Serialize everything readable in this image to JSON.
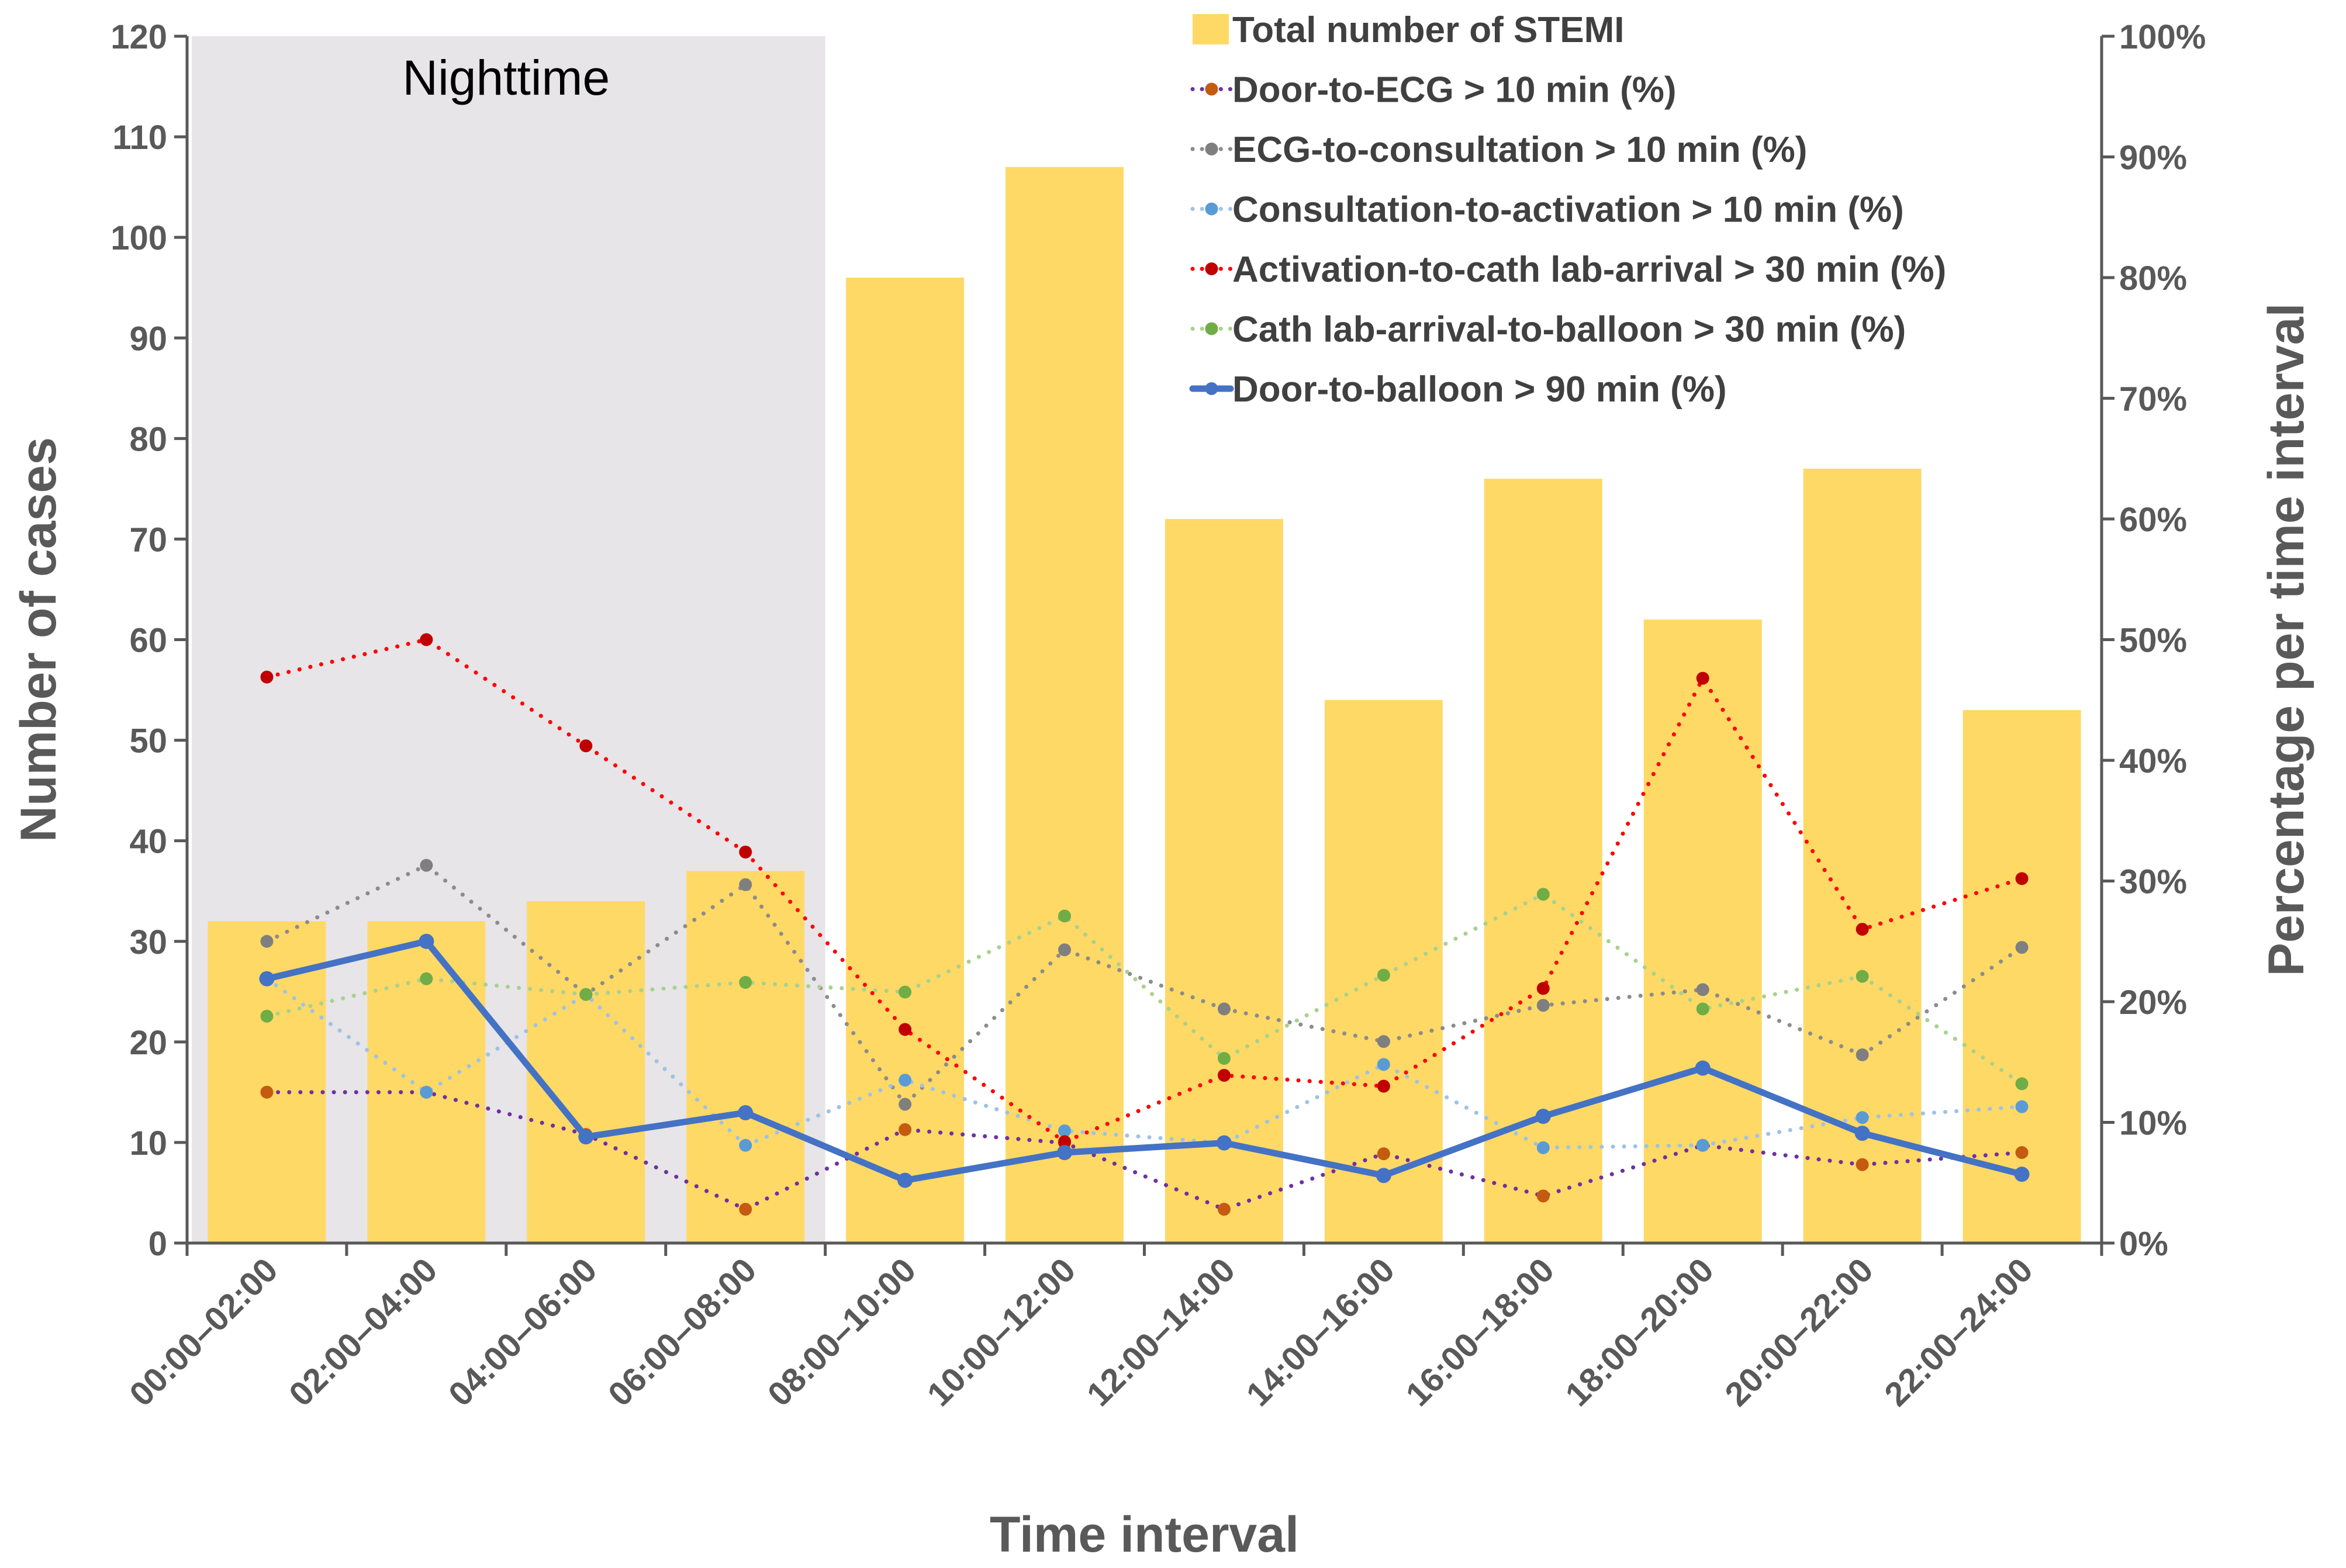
{
  "chart_data": {
    "type": "bar",
    "xlabel": "Time interval",
    "ylabel": "Number of cases",
    "y2label": "Percentage  per time interval",
    "ylim": [
      0,
      120
    ],
    "y2lim": [
      0,
      100
    ],
    "yticks": [
      "0",
      "10",
      "20",
      "30",
      "40",
      "50",
      "60",
      "70",
      "80",
      "90",
      "100",
      "110",
      "120"
    ],
    "y2ticks": [
      "0%",
      "10%",
      "20%",
      "30%",
      "40%",
      "50%",
      "60%",
      "70%",
      "80%",
      "90%",
      "100%"
    ],
    "categories": [
      "00:00–02:00",
      "02:00–04:00",
      "04:00–06:00",
      "06:00–08:00",
      "08:00–10:00",
      "10:00–12:00",
      "12:00–14:00",
      "14:00–16:00",
      "16:00–18:00",
      "18:00–20:00",
      "20:00–22:00",
      "22:00–24:00"
    ],
    "annotation": "Nighttime",
    "shaded_region": {
      "from_category": "00:00–02:00",
      "to_category": "06:00–08:00",
      "color": "#e7e5e8"
    },
    "bars": {
      "name": "Total number of STEMI",
      "axis": "left",
      "color": "#ffd966",
      "values": [
        32,
        32,
        34,
        37,
        96,
        107,
        72,
        54,
        76,
        62,
        77,
        53
      ]
    },
    "series": [
      {
        "name": "Door-to-ECG > 10 min (%)",
        "axis": "right",
        "style": "dotted",
        "color": "#7030a0",
        "marker": "#c55a11",
        "values": [
          12.5,
          12.5,
          9.0,
          2.8,
          9.4,
          8.3,
          2.8,
          7.4,
          3.9,
          8.1,
          6.5,
          7.5
        ]
      },
      {
        "name": "ECG-to-consultation > 10 min (%)",
        "axis": "right",
        "style": "dotted",
        "color": "#8c8c8c",
        "marker": "#7f7f7f",
        "values": [
          25.0,
          31.3,
          20.6,
          29.7,
          11.5,
          24.3,
          19.4,
          16.7,
          19.7,
          21.0,
          15.6,
          24.5
        ]
      },
      {
        "name": "Consultation-to-activation > 10 min (%)",
        "axis": "right",
        "style": "dotted",
        "color": "#9dc3e6",
        "marker": "#5b9bd5",
        "values": [
          21.9,
          12.5,
          20.6,
          8.1,
          13.5,
          9.3,
          8.3,
          14.8,
          7.9,
          8.1,
          10.4,
          11.3
        ]
      },
      {
        "name": "Activation-to-cath lab-arrival > 30 min (%)",
        "axis": "right",
        "style": "dotted",
        "color": "#ff0000",
        "marker": "#c00000",
        "values": [
          46.9,
          50.0,
          41.2,
          32.4,
          17.7,
          8.4,
          13.9,
          13.0,
          21.1,
          46.8,
          26.0,
          30.2
        ]
      },
      {
        "name": "Cath lab-arrival-to-balloon > 30 min (%)",
        "axis": "right",
        "style": "dotted",
        "color": "#a9d18e",
        "marker": "#70ad47",
        "values": [
          18.8,
          21.9,
          20.6,
          21.6,
          20.8,
          27.1,
          15.3,
          22.2,
          28.9,
          19.4,
          22.1,
          13.2
        ]
      },
      {
        "name": "Door-to-balloon > 90 min (%)",
        "axis": "right",
        "style": "solid",
        "color": "#4472c4",
        "marker": "#4472c4",
        "values": [
          21.9,
          25.0,
          8.8,
          10.8,
          5.2,
          7.5,
          8.3,
          5.6,
          10.5,
          14.5,
          9.1,
          5.7
        ]
      }
    ],
    "legend_position": "top-right"
  }
}
